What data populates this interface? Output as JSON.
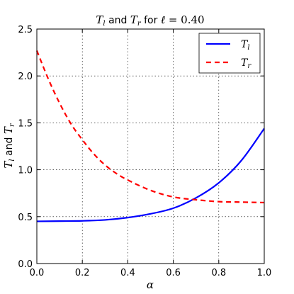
{
  "chart_data": {
    "type": "line",
    "title": "T_l and T_r for ℓ = 0.40",
    "xlabel": "α",
    "ylabel": "T_l and T_r",
    "xlim": [
      0.0,
      1.0
    ],
    "ylim": [
      0.0,
      2.5
    ],
    "xticks": [
      0.0,
      0.2,
      0.4,
      0.6,
      0.8,
      1.0
    ],
    "xtick_labels": [
      "0.0",
      "0.2",
      "0.4",
      "0.6",
      "0.8",
      "1.0"
    ],
    "yticks": [
      0.0,
      0.5,
      1.0,
      1.5,
      2.0,
      2.5
    ],
    "ytick_labels": [
      "0.0",
      "0.5",
      "1.0",
      "1.5",
      "2.0",
      "2.5"
    ],
    "grid": true,
    "legend_position": "top-right",
    "series": [
      {
        "name": "T_l",
        "color": "#0000ff",
        "style": "solid",
        "x": [
          0.0,
          0.1,
          0.2,
          0.3,
          0.4,
          0.5,
          0.6,
          0.7,
          0.8,
          0.9,
          1.0
        ],
        "y": [
          0.45,
          0.452,
          0.455,
          0.465,
          0.49,
          0.53,
          0.59,
          0.7,
          0.86,
          1.1,
          1.44
        ]
      },
      {
        "name": "T_r",
        "color": "#ff0000",
        "style": "dashed",
        "x": [
          0.0,
          0.05,
          0.1,
          0.15,
          0.2,
          0.25,
          0.3,
          0.35,
          0.4,
          0.5,
          0.6,
          0.7,
          0.8,
          0.9,
          1.0
        ],
        "y": [
          2.27,
          1.97,
          1.71,
          1.49,
          1.32,
          1.17,
          1.05,
          0.96,
          0.89,
          0.78,
          0.71,
          0.68,
          0.66,
          0.655,
          0.65
        ]
      }
    ]
  }
}
